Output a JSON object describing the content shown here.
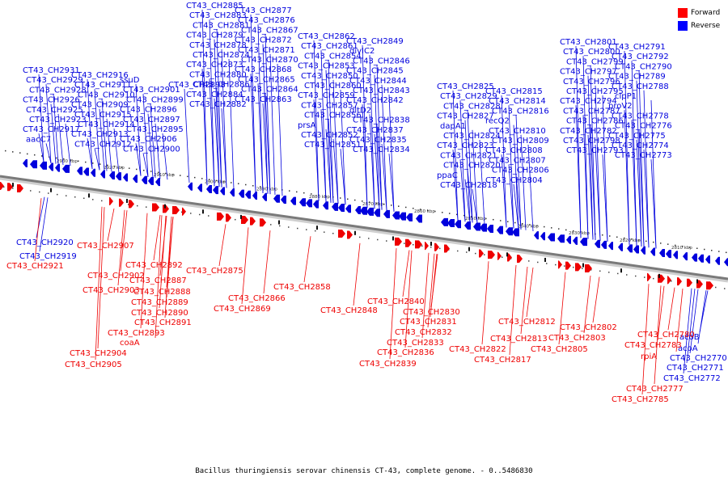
{
  "caption": "Bacillus thuringiensis serovar chinensis CT-43, complete genome. - 0..5486830",
  "legend": [
    {
      "label": "Forward",
      "color": "#ff0000"
    },
    {
      "label": "Reverse",
      "color": "#0000ff"
    }
  ],
  "colors": {
    "forward": "#ee0000",
    "reverse": "#0000dd",
    "backbone": "#7a7a7a"
  },
  "scale_labels": [
    "2930 kbp",
    "2920 kbp",
    "2910 kbp",
    "2900 kbp",
    "2890 kbp",
    "2880 kbp",
    "2870 kbp",
    "2860 kbp",
    "2850 kbp",
    "2840 kbp",
    "2830 kbp",
    "2820 kbp",
    "2810 kbp"
  ],
  "reverse_genes": [
    "CT43_CH2931",
    "CT43_CH2929",
    "CT43_CH2928",
    "CT43_CH2926",
    "CT43_CH2925",
    "CT43_CH2923",
    "CT43_CH2917",
    "aacC7",
    "CT43_CH2916",
    "CT43_CH2911",
    "CT43_CH2910",
    "CT43_CH2909",
    "CT43_CH2915",
    "CT43_CH2914",
    "CT43_CH2913",
    "CT43_CH2912",
    "ssuD",
    "CT43_CH2901",
    "CT43_CH2899",
    "CT43_CH2896",
    "CT43_CH2897",
    "CT43_CH2895",
    "CT43_CH2906",
    "CT43_CH2900",
    "CT43_CH2898",
    "CT43_CH2885",
    "CT43_CH2883",
    "CT43_CH2881",
    "CT43_CH2879",
    "CT43_CH2878",
    "CT43_CH2874",
    "CT43_CH2873",
    "CT43_CH2880",
    "CT43_CH2886",
    "CT43_CH2884",
    "CT43_CH2882",
    "CT43_CH2877",
    "CT43_CH2876",
    "CT43_CH2867",
    "CT43_CH2872",
    "CT43_CH2871",
    "CT43_CH2870",
    "CT43_CH2868",
    "CT43_CH2865",
    "CT43_CH2864",
    "CT43_CH2863",
    "CT43_CH2862",
    "CT43_CH2861",
    "CT43_CH2854",
    "CT43_CH2853",
    "CT43_CH2850",
    "CT43_CH2860",
    "CT43_CH2859",
    "CT43_CH2857",
    "CT43_CH2856",
    "prsA",
    "CT43_CH2852",
    "CT43_CH2851",
    "CT43_CH2849",
    "divIC2",
    "CT43_CH2846",
    "CT43_CH2845",
    "CT43_CH2844",
    "CT43_CH2843",
    "CT43_CH2842",
    "dltD2",
    "CT43_CH2838",
    "CT43_CH2837",
    "CT43_CH2835",
    "CT43_CH2834",
    "CT43_CH2825",
    "CT43_CH2829",
    "CT43_CH2828",
    "CT43_CH2827",
    "dapA1",
    "CT43_CH2824",
    "CT43_CH2823",
    "CT43_CH2821",
    "CT43_CH2820",
    "ppaC",
    "CT43_CH2818",
    "CT43_CH2815",
    "CT43_CH2814",
    "CT43_CH2816",
    "recQ2",
    "CT43_CH2810",
    "CT43_CH2809",
    "CT43_CH2808",
    "CT43_CH2807",
    "CT43_CH2806",
    "CT43_CH2804",
    "CT43_CH2801",
    "CT43_CH2800",
    "CT43_CH2799",
    "CT43_CH2797",
    "CT43_CH2796",
    "CT43_CH2795",
    "CT43_CH2794",
    "CT43_CH2787",
    "CT43_CH2786",
    "CT43_CH2782",
    "CT43_CH2798",
    "CT43_CH2793",
    "CT43_CH2791",
    "CT43_CH2792",
    "CT43_CH2790",
    "CT43_CH2789",
    "CT43_CH2788",
    "clpP1",
    "proV2",
    "CT43_CH2778",
    "CT43_CH2776",
    "CT43_CH2775",
    "CT43_CH2774",
    "CT43_CH2773"
  ],
  "reverse_genes_below": [
    "CT43_CH2920",
    "CT43_CH2919",
    "acoB",
    "acoA",
    "CT43_CH2770",
    "CT43_CH2771",
    "CT43_CH2772"
  ],
  "forward_genes": [
    "CT43_CH2921",
    "CT43_CH2907",
    "CT43_CH2902",
    "CT43_CH2903",
    "CT43_CH2892",
    "CT43_CH2887",
    "CT43_CH2888",
    "CT43_CH2889",
    "CT43_CH2890",
    "CT43_CH2891",
    "CT43_CH2893",
    "coaA",
    "CT43_CH2904",
    "CT43_CH2905",
    "CT43_CH2875",
    "CT43_CH2866",
    "CT43_CH2869",
    "CT43_CH2858",
    "CT43_CH2848",
    "CT43_CH2840",
    "CT43_CH2830",
    "CT43_CH2831",
    "CT43_CH2832",
    "CT43_CH2833",
    "CT43_CH2836",
    "CT43_CH2839",
    "CT43_CH2822",
    "CT43_CH2817",
    "CT43_CH2812",
    "CT43_CH2813",
    "CT43_CH2802",
    "CT43_CH2803",
    "CT43_CH2805",
    "CT43_CH2780",
    "CT43_CH2783",
    "rpiA",
    "CT43_CH2777",
    "CT43_CH2785"
  ]
}
